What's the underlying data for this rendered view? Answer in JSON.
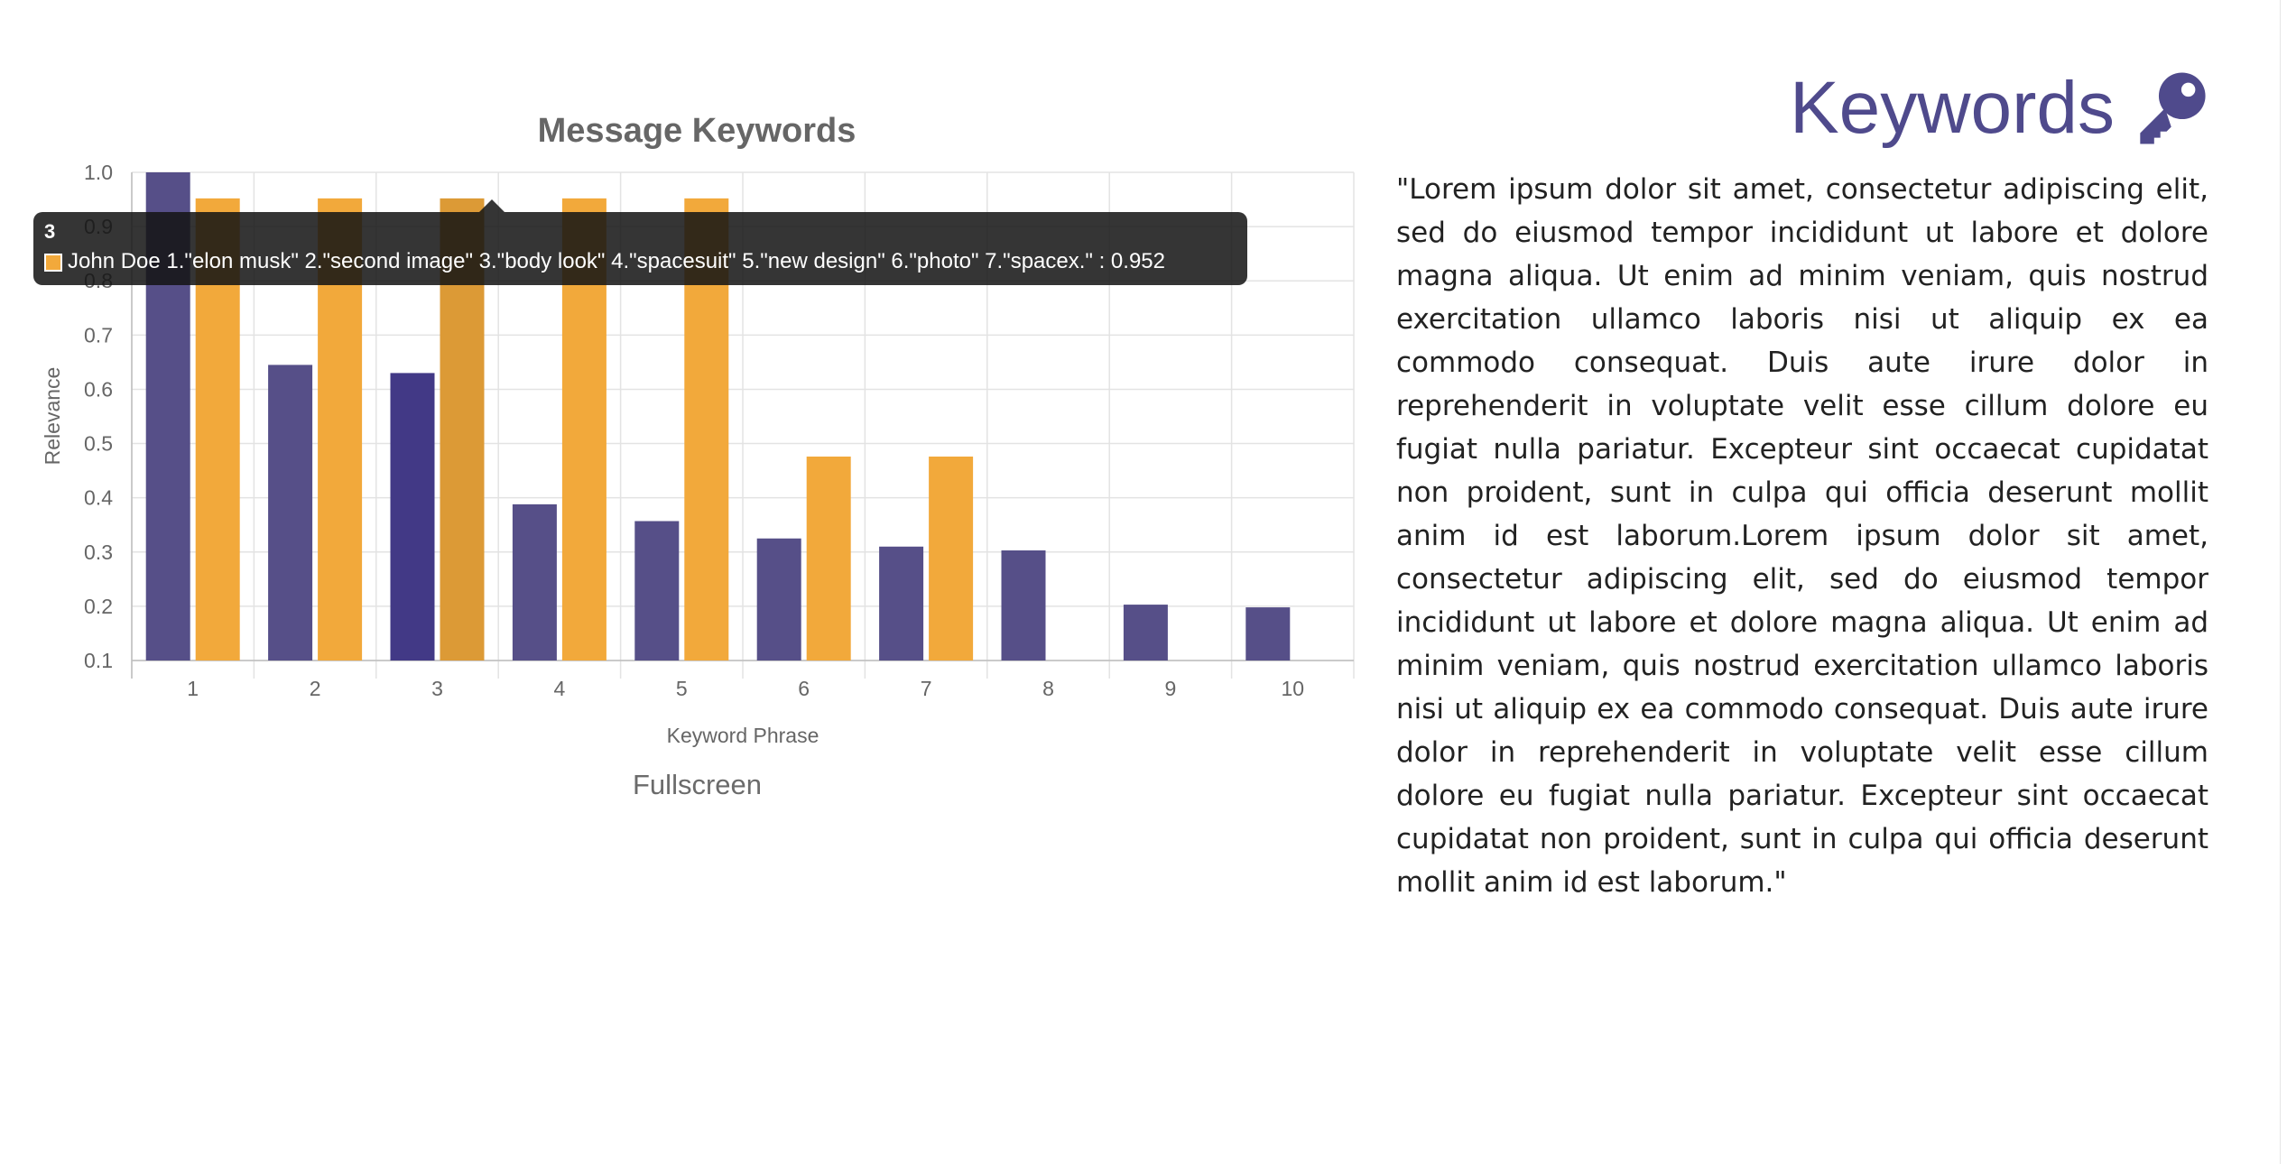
{
  "chart_data": {
    "type": "bar",
    "title": "Message Keywords",
    "xlabel": "Keyword Phrase",
    "ylabel": "Relevance",
    "ylim": [
      0.1,
      1.0
    ],
    "yticks": [
      "0.1",
      "0.2",
      "0.3",
      "0.4",
      "0.5",
      "0.6",
      "0.7",
      "0.8",
      "0.9",
      "1.0"
    ],
    "categories": [
      "1",
      "2",
      "3",
      "4",
      "5",
      "6",
      "7",
      "8",
      "9",
      "10"
    ],
    "grid": true,
    "series": [
      {
        "color": "#564f88",
        "values": [
          1.0,
          0.645,
          0.63,
          0.388,
          0.357,
          0.325,
          0.31,
          0.303,
          0.203,
          0.198
        ]
      },
      {
        "name": "John Doe",
        "color": "#f2a93b",
        "values": [
          0.952,
          0.952,
          0.952,
          0.952,
          0.952,
          0.476,
          0.476,
          null,
          null,
          null
        ]
      }
    ],
    "highlighted_index": 2,
    "highlight_colors": [
      "#423986",
      "#dc9a36"
    ]
  },
  "tooltip": {
    "title": "3",
    "body": "John Doe 1.\"elon musk\"  2.\"second image\"  3.\"body look\"  4.\"spacesuit\"  5.\"new design\"  6.\"photo\"  7.\"spacex.\" : 0.952"
  },
  "chart_footer": {
    "fullscreen_label": "Fullscreen"
  },
  "panel": {
    "heading": "Keywords",
    "heading_icon": "key-icon",
    "heading_color": "#4f4a8c",
    "body": "\"Lorem ipsum dolor sit amet, consectetur adipiscing elit, sed do eiusmod tempor incididunt ut labore et dolore magna aliqua. Ut enim ad minim veniam, quis nostrud exercitation ullamco laboris nisi ut aliquip ex ea commodo consequat. Duis aute irure dolor in reprehenderit in voluptate velit esse cillum dolore eu fugiat nulla pariatur. Excepteur sint occaecat cupidatat non proident, sunt in culpa qui officia deserunt mollit anim id est laborum.Lorem ipsum dolor sit amet, consectetur adipiscing elit, sed do eiusmod tempor incididunt ut labore et dolore magna aliqua. Ut enim ad minim veniam, quis nostrud exercitation ullamco laboris nisi ut aliquip ex ea commodo consequat. Duis aute irure dolor in reprehenderit in voluptate velit esse cillum dolore eu fugiat nulla pariatur. Excepteur sint occaecat cupidatat non proident, sunt in culpa qui officia deserunt mollit anim id est laborum.\""
  }
}
